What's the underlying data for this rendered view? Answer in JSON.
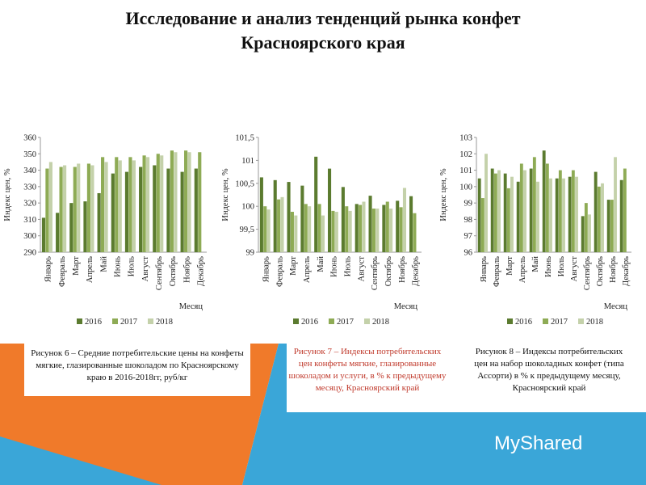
{
  "title": [
    "Исследование и анализ тенденций рынка конфет",
    "Красноярского края"
  ],
  "watermark": "MyShared",
  "chart_data": [
    {
      "type": "bar",
      "y_label": "Индекс цен, %",
      "x_label": "Месяц",
      "caption": "Рисунок 6 – Средние потребительские цены на конфеты мягкие, глазированные шоколадом по Красноярскому краю в 2016-2018гг, руб/кг",
      "caption_color": "#111111",
      "categories": [
        "Январь",
        "Февраль",
        "Март",
        "Апрель",
        "Май",
        "Июнь",
        "Июль",
        "Август",
        "Сентябрь",
        "Октябрь",
        "Ноябрь",
        "Декабрь"
      ],
      "series": [
        {
          "name": "2016",
          "color": "#5b7b2f",
          "values": [
            311,
            314,
            320,
            321,
            326,
            338,
            339,
            342,
            343,
            341,
            339,
            341
          ]
        },
        {
          "name": "2017",
          "color": "#8eab55",
          "values": [
            341,
            342,
            342,
            344,
            348,
            348,
            348,
            349,
            350,
            352,
            352,
            351
          ]
        },
        {
          "name": "2018",
          "color": "#c4d1aa",
          "values": [
            345,
            343,
            344,
            343,
            345,
            346,
            346,
            348,
            349,
            351,
            351,
            null
          ]
        }
      ],
      "ylim": [
        290,
        360
      ],
      "yticks": [
        290,
        300,
        310,
        320,
        330,
        340,
        350,
        360
      ]
    },
    {
      "type": "bar",
      "y_label": "Индекс цен, %",
      "x_label": "Месяц",
      "caption": "Рисунок 7 – Индексы потребительских цен конфеты мягкие, глазированные шоколадом и услуги, в % к предыдущему месяцу, Красноярский край",
      "caption_color": "#c0392b",
      "categories": [
        "Январь",
        "Февраль",
        "Март",
        "Апрель",
        "Май",
        "Июнь",
        "Июль",
        "Август",
        "Сентябрь",
        "Октябрь",
        "Ноябрь",
        "Декабрь"
      ],
      "series": [
        {
          "name": "2016",
          "color": "#5b7b2f",
          "values": [
            100.63,
            100.57,
            100.53,
            100.45,
            101.08,
            100.82,
            100.42,
            100.05,
            100.23,
            100.03,
            100.12,
            100.22
          ]
        },
        {
          "name": "2017",
          "color": "#8eab55",
          "values": [
            100.0,
            100.15,
            99.88,
            100.05,
            100.05,
            99.9,
            100.0,
            100.03,
            99.95,
            100.1,
            99.98,
            99.85
          ]
        },
        {
          "name": "2018",
          "color": "#c4d1aa",
          "values": [
            99.93,
            100.2,
            99.8,
            100.0,
            99.8,
            99.88,
            99.9,
            100.1,
            99.95,
            99.95,
            100.4,
            null
          ]
        }
      ],
      "ylim": [
        99,
        101.5
      ],
      "yticks": [
        99,
        {
          "value": 99.5,
          "label": "99,5"
        },
        100,
        {
          "value": 100.5,
          "label": "100,5"
        },
        101,
        {
          "value": 101.5,
          "label": "101,5"
        }
      ]
    },
    {
      "type": "bar",
      "y_label": "Индекс цен, %",
      "x_label": "Месяц",
      "caption": "Рисунок 8 – Индексы потребительских цен на набор шоколадных конфет (типа Ассорти) в % к предыдущему месяцу, Красноярский край",
      "caption_color": "#111111",
      "categories": [
        "Январь",
        "Февраль",
        "Март",
        "Апрель",
        "Май",
        "Июнь",
        "Июль",
        "Август",
        "Сентябрь",
        "Октябрь",
        "Ноябрь",
        "Декабрь"
      ],
      "series": [
        {
          "name": "2016",
          "color": "#5b7b2f",
          "values": [
            100.5,
            101.1,
            100.8,
            100.3,
            101.1,
            102.2,
            100.5,
            100.6,
            98.2,
            100.9,
            99.2,
            100.4
          ]
        },
        {
          "name": "2017",
          "color": "#8eab55",
          "values": [
            99.3,
            100.8,
            99.9,
            101.4,
            101.8,
            101.4,
            101.0,
            101.0,
            99.0,
            100.0,
            99.2,
            101.1
          ]
        },
        {
          "name": "2018",
          "color": "#c4d1aa",
          "values": [
            102.0,
            101.0,
            100.6,
            101.0,
            100.3,
            100.5,
            100.5,
            100.6,
            98.3,
            100.2,
            101.8,
            null
          ]
        }
      ],
      "ylim": [
        96,
        103
      ],
      "yticks": [
        96,
        97,
        98,
        99,
        100,
        101,
        102,
        103
      ]
    }
  ]
}
